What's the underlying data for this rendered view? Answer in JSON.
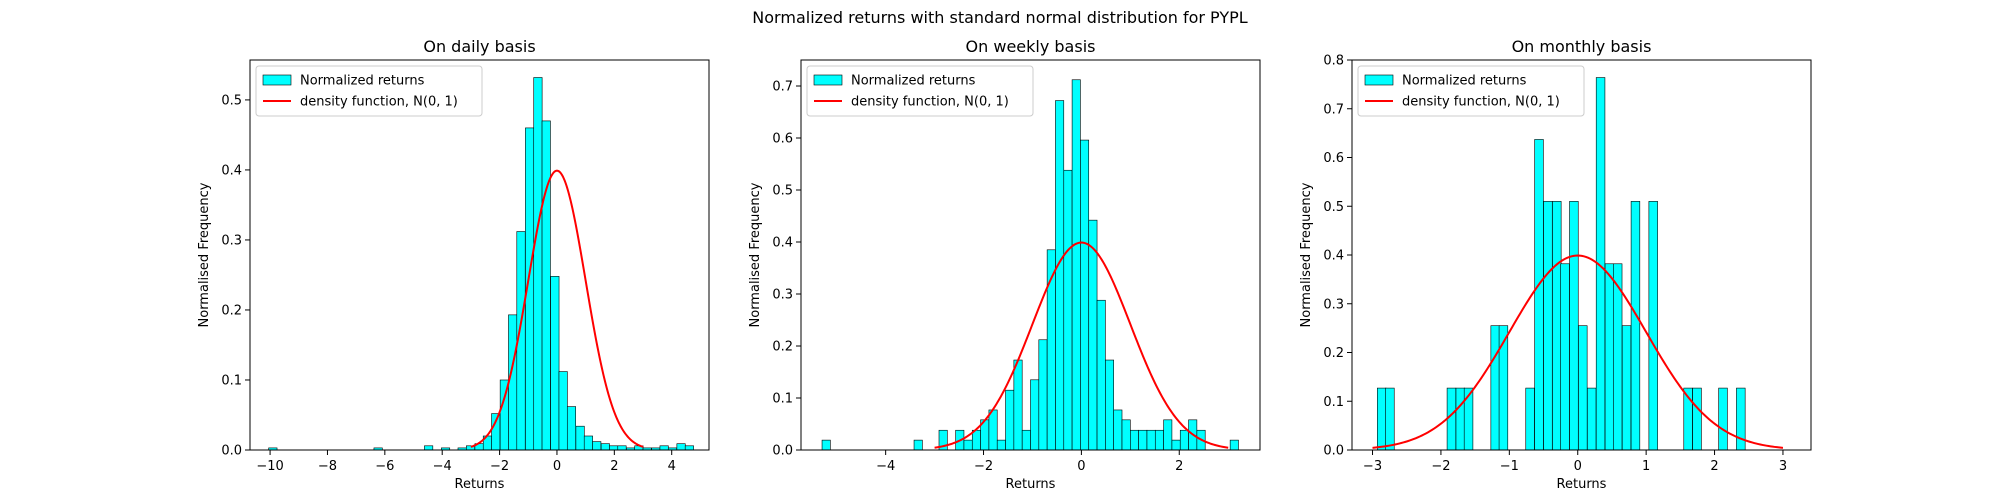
{
  "suptitle": "Normalized returns with standard normal distribution for PYPL",
  "colors": {
    "bar_fill": "#00ffff",
    "bar_edge": "#000000",
    "density_line": "#ff0000"
  },
  "chart_data": [
    {
      "type": "bar",
      "title": "On daily basis",
      "xlabel": "Returns",
      "ylabel": "Normalised Frequency",
      "xlim": [
        -10.7,
        5.3
      ],
      "ylim": [
        0,
        0.557
      ],
      "xticks": [
        -10,
        -8,
        -6,
        -4,
        -2,
        0,
        2,
        4
      ],
      "yticks": [
        0.0,
        0.1,
        0.2,
        0.3,
        0.4,
        0.5
      ],
      "xtick_labels": [
        "−10",
        "−8",
        "−6",
        "−4",
        "−2",
        "0",
        "2",
        "4"
      ],
      "ytick_labels": [
        "0.0",
        "0.1",
        "0.2",
        "0.3",
        "0.4",
        "0.5"
      ],
      "legend": {
        "position": "upper-left",
        "entries": [
          "Normalized returns",
          "density function, N(0, 1)"
        ]
      },
      "bin_width": 0.293,
      "bin_starts": [
        -10.05,
        -6.38,
        -4.62,
        -4.03,
        -3.45,
        -3.16,
        -2.86,
        -2.57,
        -2.28,
        -1.98,
        -1.69,
        -1.4,
        -1.1,
        -0.81,
        -0.52,
        -0.22,
        0.07,
        0.36,
        0.66,
        0.95,
        1.24,
        1.54,
        1.83,
        2.12,
        2.42,
        2.71,
        3.0,
        3.3,
        3.59,
        3.88,
        4.18,
        4.47
      ],
      "values": [
        0.003,
        0.003,
        0.006,
        0.003,
        0.003,
        0.006,
        0.009,
        0.02,
        0.052,
        0.1,
        0.193,
        0.312,
        0.46,
        0.532,
        0.47,
        0.248,
        0.112,
        0.062,
        0.034,
        0.02,
        0.012,
        0.009,
        0.006,
        0.006,
        0.003,
        0.006,
        0.003,
        0.003,
        0.006,
        0.003,
        0.009,
        0.006
      ],
      "density_x_range": [
        -3,
        3
      ]
    },
    {
      "type": "bar",
      "title": "On weekly basis",
      "xlabel": "Returns",
      "ylabel": "Normalised Frequency",
      "xlim": [
        -5.73,
        3.65
      ],
      "ylim": [
        0,
        0.75
      ],
      "xticks": [
        -4,
        -2,
        0,
        2
      ],
      "yticks": [
        0.0,
        0.1,
        0.2,
        0.3,
        0.4,
        0.5,
        0.6,
        0.7
      ],
      "xtick_labels": [
        "−4",
        "−2",
        "0",
        "2"
      ],
      "ytick_labels": [
        "0.0",
        "0.1",
        "0.2",
        "0.3",
        "0.4",
        "0.5",
        "0.6",
        "0.7"
      ],
      "legend": {
        "position": "upper-left",
        "entries": [
          "Normalized returns",
          "density function, N(0, 1)"
        ]
      },
      "bin_width": 0.17,
      "bin_starts": [
        -5.3,
        -3.42,
        -2.91,
        -2.57,
        -2.4,
        -2.23,
        -2.06,
        -1.89,
        -1.72,
        -1.55,
        -1.38,
        -1.21,
        -1.04,
        -0.87,
        -0.7,
        -0.53,
        -0.36,
        -0.19,
        -0.02,
        0.15,
        0.32,
        0.49,
        0.66,
        0.83,
        1.0,
        1.17,
        1.34,
        1.51,
        1.68,
        1.85,
        2.02,
        2.19,
        2.36,
        3.04
      ],
      "values": [
        0.019,
        0.019,
        0.038,
        0.038,
        0.019,
        0.038,
        0.058,
        0.077,
        0.019,
        0.115,
        0.173,
        0.038,
        0.135,
        0.212,
        0.385,
        0.672,
        0.538,
        0.712,
        0.596,
        0.442,
        0.288,
        0.173,
        0.077,
        0.058,
        0.038,
        0.038,
        0.038,
        0.038,
        0.058,
        0.019,
        0.038,
        0.058,
        0.038,
        0.019
      ],
      "density_x_range": [
        -3,
        3
      ]
    },
    {
      "type": "bar",
      "title": "On monthly basis",
      "xlabel": "Returns",
      "ylabel": "Normalised Frequency",
      "xlim": [
        -3.3,
        3.41
      ],
      "ylim": [
        0,
        0.8
      ],
      "xticks": [
        -3,
        -2,
        -1,
        0,
        1,
        2,
        3
      ],
      "yticks": [
        0.0,
        0.1,
        0.2,
        0.3,
        0.4,
        0.5,
        0.6,
        0.7,
        0.8
      ],
      "xtick_labels": [
        "−3",
        "−2",
        "−1",
        "0",
        "1",
        "2",
        "3"
      ],
      "ytick_labels": [
        "0.0",
        "0.1",
        "0.2",
        "0.3",
        "0.4",
        "0.5",
        "0.6",
        "0.7",
        "0.8"
      ],
      "legend": {
        "position": "upper-left",
        "entries": [
          "Normalized returns",
          "density function, N(0, 1)"
        ]
      },
      "bin_width": 0.1275,
      "bin_starts": [
        -2.93,
        -2.81,
        -1.91,
        -1.78,
        -1.66,
        -1.27,
        -1.15,
        -0.76,
        -0.63,
        -0.5,
        -0.37,
        -0.25,
        -0.12,
        0.01,
        0.14,
        0.27,
        0.4,
        0.52,
        0.65,
        0.78,
        1.04,
        1.55,
        1.68,
        2.06,
        2.32
      ],
      "values": [
        0.127,
        0.127,
        0.127,
        0.127,
        0.127,
        0.255,
        0.255,
        0.127,
        0.637,
        0.51,
        0.51,
        0.382,
        0.51,
        0.255,
        0.127,
        0.764,
        0.382,
        0.382,
        0.255,
        0.51,
        0.51,
        0.127,
        0.127,
        0.127,
        0.127
      ],
      "density_x_range": [
        -3,
        3
      ]
    }
  ]
}
